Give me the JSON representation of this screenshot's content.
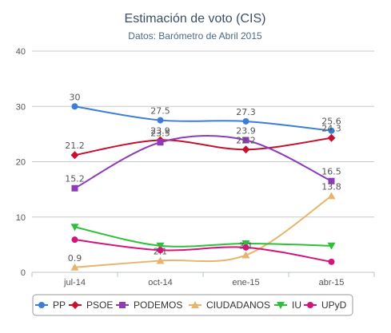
{
  "chart_data": {
    "type": "line",
    "title": "Estimación de voto (CIS)",
    "subtitle": "Datos: Barómetro de Abril 2015",
    "categories": [
      "jul-14",
      "oct-14",
      "ene-15",
      "abr-15"
    ],
    "ylim": [
      0,
      40
    ],
    "yticks": [
      0,
      10,
      20,
      30,
      40
    ],
    "grid": true,
    "legend_position": "bottom",
    "series": [
      {
        "name": "PP",
        "color": "#3b7dd8",
        "marker": "circle",
        "values": [
          30,
          27.5,
          27.3,
          25.6
        ],
        "labels": [
          "30",
          "27.5",
          "27.3",
          "25.6"
        ]
      },
      {
        "name": "PSOE",
        "color": "#c8102e",
        "marker": "diamond",
        "values": [
          21.2,
          23.9,
          22.2,
          24.3
        ],
        "labels": [
          "21.2",
          "23.9",
          "22.2",
          "24.3"
        ]
      },
      {
        "name": "PODEMOS",
        "color": "#8e3bb8",
        "marker": "square",
        "values": [
          15.2,
          23.5,
          23.9,
          16.5
        ],
        "labels": [
          "15.2",
          "23.5",
          "23.9",
          "16.5"
        ]
      },
      {
        "name": "CIUDADANOS",
        "color": "#e8b36b",
        "marker": "triangle",
        "values": [
          0.9,
          2.1,
          3.1,
          13.8
        ],
        "labels": [
          "0.9",
          "2.1",
          "3.1",
          "13.8"
        ]
      },
      {
        "name": "IU",
        "color": "#2fbf3a",
        "marker": "triangle-down",
        "values": [
          8.2,
          4.8,
          5.2,
          4.8
        ],
        "labels": []
      },
      {
        "name": "UPyD",
        "color": "#d4147a",
        "marker": "circle",
        "values": [
          5.9,
          4.0,
          4.5,
          1.9
        ],
        "labels": []
      }
    ]
  }
}
